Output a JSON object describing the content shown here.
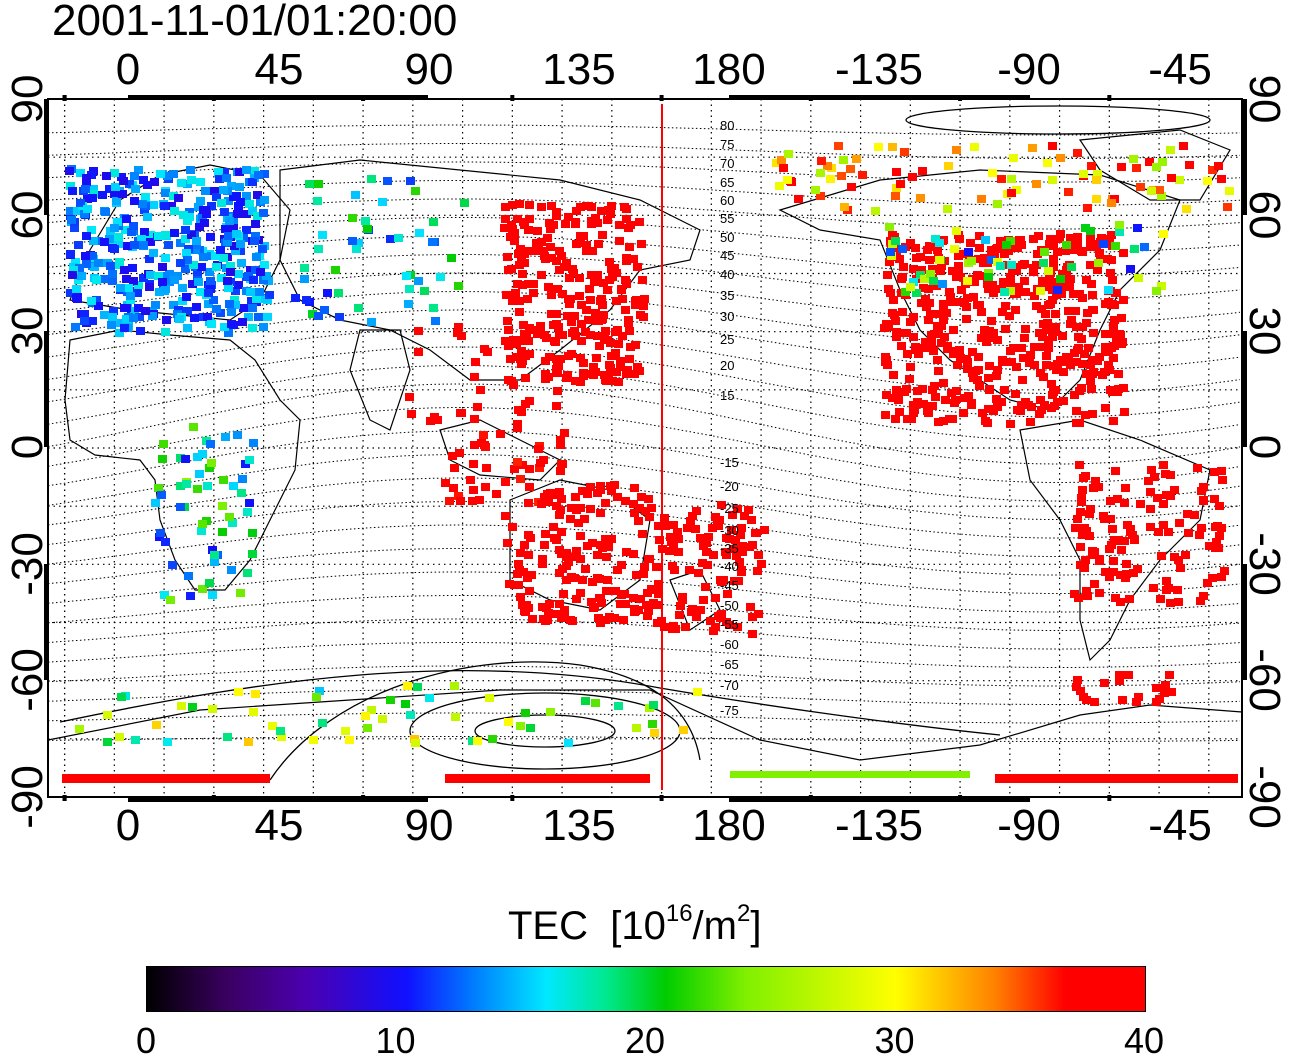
{
  "title": "2001-11-01/01:20:00",
  "top_lon_labels": [
    "0",
    "45",
    "90",
    "135",
    "180",
    "-135",
    "-90",
    "-45"
  ],
  "bottom_lon_labels": [
    "0",
    "45",
    "90",
    "135",
    "180",
    "-135",
    "-90",
    "-45"
  ],
  "left_lat_labels": [
    "90",
    "60",
    "30",
    "0",
    "-30",
    "-60",
    "-90"
  ],
  "right_lat_labels": [
    "90",
    "60",
    "30",
    "0",
    "-30",
    "-60",
    "-90"
  ],
  "contour_labels_north": [
    "80",
    "75",
    "70",
    "65",
    "60",
    "55",
    "50",
    "45",
    "40",
    "35",
    "30",
    "25",
    "20",
    "15"
  ],
  "contour_labels_south": [
    "-15",
    "-20",
    "-25",
    "-30",
    "-35",
    "-40",
    "-45",
    "-50",
    "-55",
    "-60",
    "-65",
    "-70",
    "-75"
  ],
  "colorbar": {
    "title": "TEC",
    "unit_prefix": "[10",
    "unit_exp": "16",
    "unit_mid": "/m",
    "unit_exp2": "2",
    "unit_suffix": "]",
    "ticks": [
      "0",
      "10",
      "20",
      "30",
      "40"
    ],
    "min": 0,
    "max": 40
  },
  "map": {
    "lon_start": -20,
    "lat_range": [
      -90,
      90
    ],
    "terminator_lon": 159,
    "grid": "dotted 15 degrees"
  },
  "colors": {
    "low": "#000000",
    "mid_blue": "#1010ff",
    "mid_cyan": "#00e8ff",
    "mid_green": "#00cc00",
    "high_yellow": "#ffff00",
    "max_red": "#ff0000",
    "terminator": "#ff0000"
  }
}
